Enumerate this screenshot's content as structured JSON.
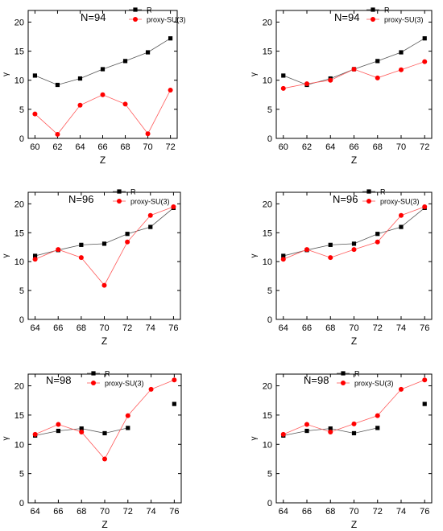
{
  "figure": {
    "background": "#ffffff",
    "series_colors": {
      "R": "#000000",
      "proxy-SU(3)": "#ff0000"
    },
    "line_colors": {
      "R": "#555555",
      "proxy-SU(3)": "#ff5a5a"
    }
  },
  "chart_data": [
    {
      "type": "line",
      "title": "N=94",
      "xlabel": "Z",
      "ylabel": "γ",
      "x": [
        60,
        62,
        64,
        66,
        68,
        70,
        72
      ],
      "xlim": [
        59.4,
        72.6
      ],
      "xticks": [
        60,
        62,
        64,
        66,
        68,
        70,
        72
      ],
      "ylim": [
        0,
        22
      ],
      "yticks": [
        0,
        5,
        10,
        15,
        20
      ],
      "legend": "top-right",
      "series": [
        {
          "name": "R",
          "marker": "square",
          "values": [
            10.8,
            9.2,
            10.3,
            11.9,
            13.3,
            14.8,
            17.2
          ]
        },
        {
          "name": "proxy-SU(3)",
          "marker": "circle",
          "values": [
            4.2,
            0.7,
            5.7,
            7.5,
            5.9,
            0.8,
            8.3
          ]
        }
      ]
    },
    {
      "type": "line",
      "title": "N=94",
      "xlabel": "Z",
      "ylabel": "γ",
      "x": [
        60,
        62,
        64,
        66,
        68,
        70,
        72
      ],
      "xlim": [
        59.4,
        72.6
      ],
      "xticks": [
        60,
        62,
        64,
        66,
        68,
        70,
        72
      ],
      "ylim": [
        0,
        22
      ],
      "yticks": [
        0,
        5,
        10,
        15,
        20
      ],
      "legend": "top-right",
      "series": [
        {
          "name": "R",
          "marker": "square",
          "values": [
            10.8,
            9.2,
            10.3,
            11.9,
            13.3,
            14.8,
            17.2
          ]
        },
        {
          "name": "proxy-SU(3)",
          "marker": "circle",
          "values": [
            8.6,
            9.4,
            10.0,
            11.9,
            10.4,
            11.8,
            13.2
          ]
        }
      ]
    },
    {
      "type": "line",
      "title": "N=96",
      "xlabel": "Z",
      "ylabel": "γ",
      "x": [
        64,
        66,
        68,
        70,
        72,
        74,
        76
      ],
      "xlim": [
        63.4,
        76.6
      ],
      "xticks": [
        64,
        66,
        68,
        70,
        72,
        74,
        76
      ],
      "ylim": [
        0,
        22
      ],
      "yticks": [
        0,
        5,
        10,
        15,
        20
      ],
      "legend": "top-center",
      "series": [
        {
          "name": "R",
          "marker": "square",
          "values": [
            11.0,
            12.0,
            12.9,
            13.1,
            14.8,
            16.0,
            19.3
          ]
        },
        {
          "name": "proxy-SU(3)",
          "marker": "circle",
          "values": [
            10.4,
            12.1,
            10.7,
            5.9,
            13.4,
            18.0,
            19.5
          ]
        }
      ]
    },
    {
      "type": "line",
      "title": "N=96",
      "xlabel": "Z",
      "ylabel": "γ",
      "x": [
        64,
        66,
        68,
        70,
        72,
        74,
        76
      ],
      "xlim": [
        63.4,
        76.6
      ],
      "xticks": [
        64,
        66,
        68,
        70,
        72,
        74,
        76
      ],
      "ylim": [
        0,
        22
      ],
      "yticks": [
        0,
        5,
        10,
        15,
        20
      ],
      "legend": "top-center",
      "series": [
        {
          "name": "R",
          "marker": "square",
          "values": [
            11.0,
            12.0,
            12.9,
            13.1,
            14.8,
            16.0,
            19.3
          ]
        },
        {
          "name": "proxy-SU(3)",
          "marker": "circle",
          "values": [
            10.4,
            12.1,
            10.7,
            12.1,
            13.4,
            18.0,
            19.5
          ]
        }
      ]
    },
    {
      "type": "line",
      "title": "N=98",
      "xlabel": "Z",
      "ylabel": "γ",
      "x": [
        64,
        66,
        68,
        70,
        72,
        74,
        76
      ],
      "xlim": [
        63.4,
        76.6
      ],
      "xticks": [
        64,
        66,
        68,
        70,
        72,
        74,
        76
      ],
      "ylim": [
        0,
        22
      ],
      "yticks": [
        0,
        5,
        10,
        15,
        20
      ],
      "legend": "top-center",
      "series": [
        {
          "name": "R",
          "marker": "square",
          "connect": [
            [
              64,
              72
            ]
          ],
          "values": [
            11.5,
            12.3,
            12.7,
            11.9,
            12.8,
            null,
            16.9
          ]
        },
        {
          "name": "proxy-SU(3)",
          "marker": "circle",
          "values": [
            11.7,
            13.4,
            12.1,
            7.5,
            14.9,
            19.4,
            21.0
          ]
        }
      ]
    },
    {
      "type": "line",
      "title": "N=98",
      "xlabel": "Z",
      "ylabel": "γ",
      "x": [
        64,
        66,
        68,
        70,
        72,
        74,
        76
      ],
      "xlim": [
        63.4,
        76.6
      ],
      "xticks": [
        64,
        66,
        68,
        70,
        72,
        74,
        76
      ],
      "ylim": [
        0,
        22
      ],
      "yticks": [
        0,
        5,
        10,
        15,
        20
      ],
      "legend": "top-center",
      "series": [
        {
          "name": "R",
          "marker": "square",
          "connect": [
            [
              64,
              72
            ]
          ],
          "values": [
            11.5,
            12.3,
            12.7,
            11.9,
            12.8,
            null,
            16.9
          ]
        },
        {
          "name": "proxy-SU(3)",
          "marker": "circle",
          "values": [
            11.7,
            13.4,
            12.1,
            13.5,
            14.9,
            19.4,
            21.0
          ]
        }
      ]
    }
  ]
}
